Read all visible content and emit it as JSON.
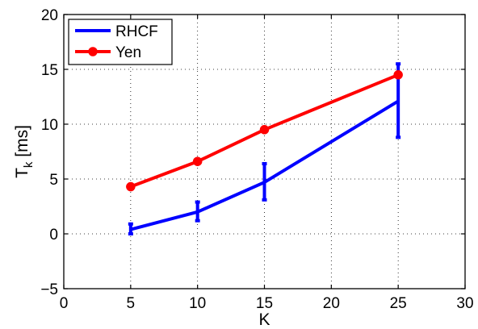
{
  "chart_data": {
    "type": "line",
    "title": "",
    "xlabel": "K",
    "ylabel": {
      "main": "T",
      "subscript": "k",
      "unit": " [ms]"
    },
    "xlim": [
      0,
      30
    ],
    "ylim": [
      -5,
      20
    ],
    "xticks": [
      0,
      5,
      10,
      15,
      20,
      25,
      30
    ],
    "yticks": [
      -5,
      0,
      5,
      10,
      15,
      20
    ],
    "xtick_labels": [
      "0",
      "5",
      "10",
      "15",
      "20",
      "25",
      "30"
    ],
    "ytick_labels": [
      "−5",
      "0",
      "5",
      "10",
      "15",
      "20"
    ],
    "grid": true,
    "legend_position": "top-left",
    "series": [
      {
        "name": "RHCF",
        "color": "#0000ff",
        "marker": "none",
        "x": [
          5,
          10,
          15,
          25
        ],
        "y": [
          0.4,
          2.0,
          4.7,
          12.1
        ],
        "error_low": [
          0.0,
          1.2,
          3.1,
          8.8
        ],
        "error_high": [
          0.9,
          2.9,
          6.4,
          15.5
        ]
      },
      {
        "name": "Yen",
        "color": "#ff0000",
        "marker": "circle",
        "x": [
          5,
          10,
          15,
          25
        ],
        "y": [
          4.3,
          6.6,
          9.5,
          14.5
        ]
      }
    ]
  }
}
